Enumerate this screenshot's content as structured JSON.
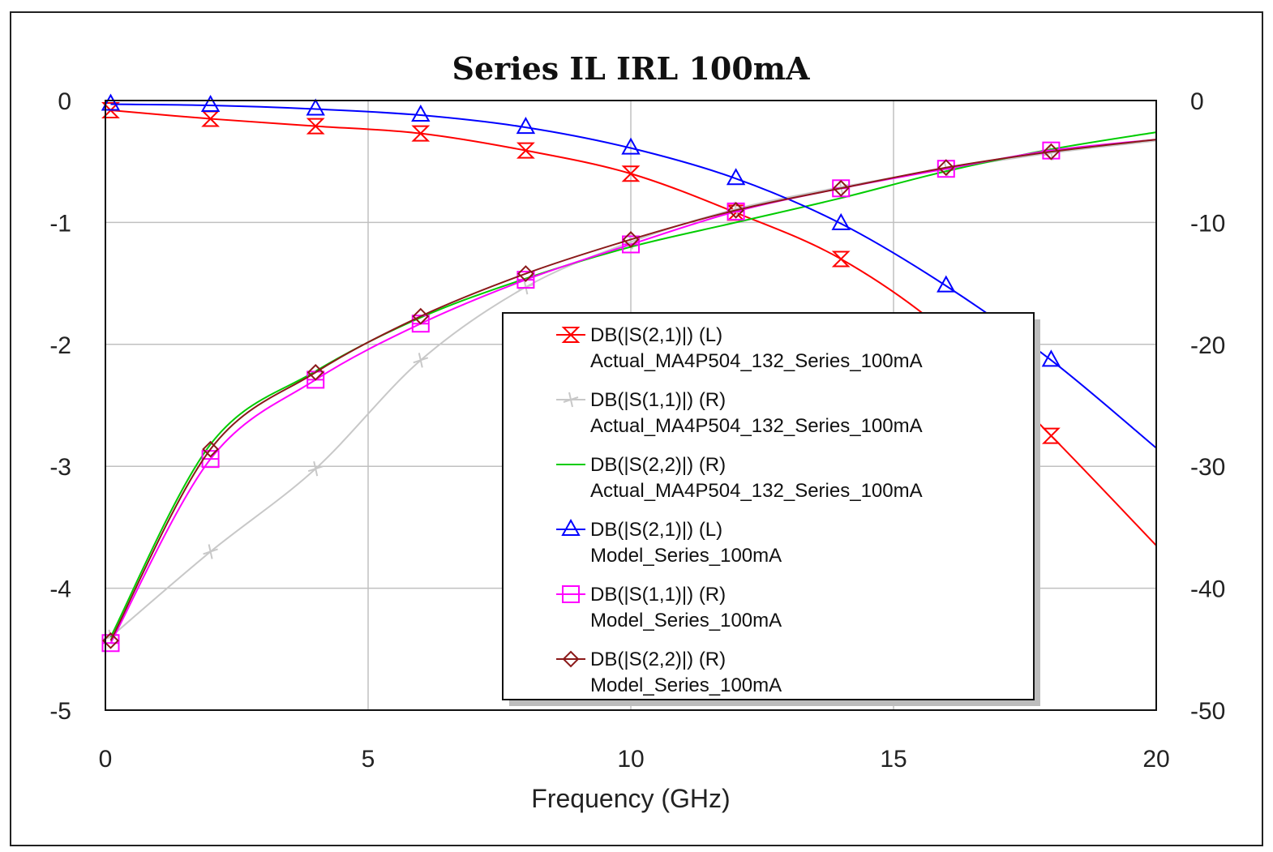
{
  "chart_data": {
    "type": "line",
    "title": "Series IL IRL 100mA",
    "xlabel": "Frequency (GHz)",
    "ylabel_left": "",
    "ylabel_right": "",
    "xlim": [
      0,
      20
    ],
    "ylim_left": [
      -5,
      0
    ],
    "ylim_right": [
      -50,
      0
    ],
    "xticks": [
      "0",
      "5",
      "10",
      "15",
      "20"
    ],
    "yticks_left": [
      "0",
      "-1",
      "-2",
      "-3",
      "-4",
      "-5"
    ],
    "yticks_right": [
      "0",
      "-10",
      "-20",
      "-30",
      "-40",
      "-50"
    ],
    "grid": true,
    "legend_position": "center-right",
    "series": [
      {
        "name": "DB(|S(2,1)|) (L)",
        "source": "Actual_MA4P504_132_Series_100mA",
        "axis": "left",
        "color": "#ff0000",
        "marker": "hourglass",
        "x": [
          0.1,
          2,
          4,
          6,
          8,
          10,
          12,
          14,
          16,
          18,
          20
        ],
        "y": [
          -0.08,
          -0.15,
          -0.21,
          -0.27,
          -0.41,
          -0.6,
          -0.92,
          -1.3,
          -1.9,
          -2.75,
          -3.65
        ]
      },
      {
        "name": "DB(|S(1,1)|) (R)",
        "source": "Actual_MA4P504_132_Series_100mA",
        "axis": "right",
        "color": "#c8c8c8",
        "marker": "plus",
        "x": [
          0.1,
          2,
          4,
          6,
          8,
          10,
          12,
          14,
          16,
          18,
          20
        ],
        "y": [
          -44,
          -37,
          -30.2,
          -21.3,
          -15.3,
          -11.6,
          -8.9,
          -7.1,
          -5.6,
          -4.3,
          -3.3
        ]
      },
      {
        "name": "DB(|S(2,2)|) (R)",
        "source": "Actual_MA4P504_132_Series_100mA",
        "axis": "right",
        "color": "#00cc00",
        "marker": "none",
        "x": [
          0.1,
          2,
          4,
          6,
          8,
          10,
          12,
          14,
          16,
          18,
          20
        ],
        "y": [
          -44,
          -28.2,
          -22.2,
          -17.8,
          -14.6,
          -12,
          -10,
          -8,
          -5.8,
          -4,
          -2.6
        ]
      },
      {
        "name": "DB(|S(2,1)|) (L)",
        "source": "Model_Series_100mA",
        "axis": "left",
        "color": "#0000ff",
        "marker": "triangle",
        "x": [
          0.1,
          2,
          4,
          6,
          8,
          10,
          12,
          14,
          16,
          18,
          20
        ],
        "y": [
          -0.03,
          -0.04,
          -0.07,
          -0.12,
          -0.22,
          -0.39,
          -0.64,
          -1.01,
          -1.52,
          -2.13,
          -2.85
        ]
      },
      {
        "name": "DB(|S(1,1)|) (R)",
        "source": "Model_Series_100mA",
        "axis": "right",
        "color": "#ff00ff",
        "marker": "square",
        "x": [
          0.1,
          2,
          4,
          6,
          8,
          10,
          12,
          14,
          16,
          18,
          20
        ],
        "y": [
          -44.5,
          -29.4,
          -22.9,
          -18.3,
          -14.7,
          -11.8,
          -9.1,
          -7.2,
          -5.6,
          -4.1,
          -3.2
        ]
      },
      {
        "name": "DB(|S(2,2)|) (R)",
        "source": "Model_Series_100mA",
        "axis": "right",
        "color": "#8b1a1a",
        "marker": "diamond",
        "x": [
          0.1,
          2,
          4,
          6,
          8,
          10,
          12,
          14,
          16,
          18,
          20
        ],
        "y": [
          -44.3,
          -28.6,
          -22.3,
          -17.7,
          -14.2,
          -11.4,
          -9,
          -7.2,
          -5.5,
          -4.2,
          -3.2
        ]
      }
    ]
  }
}
